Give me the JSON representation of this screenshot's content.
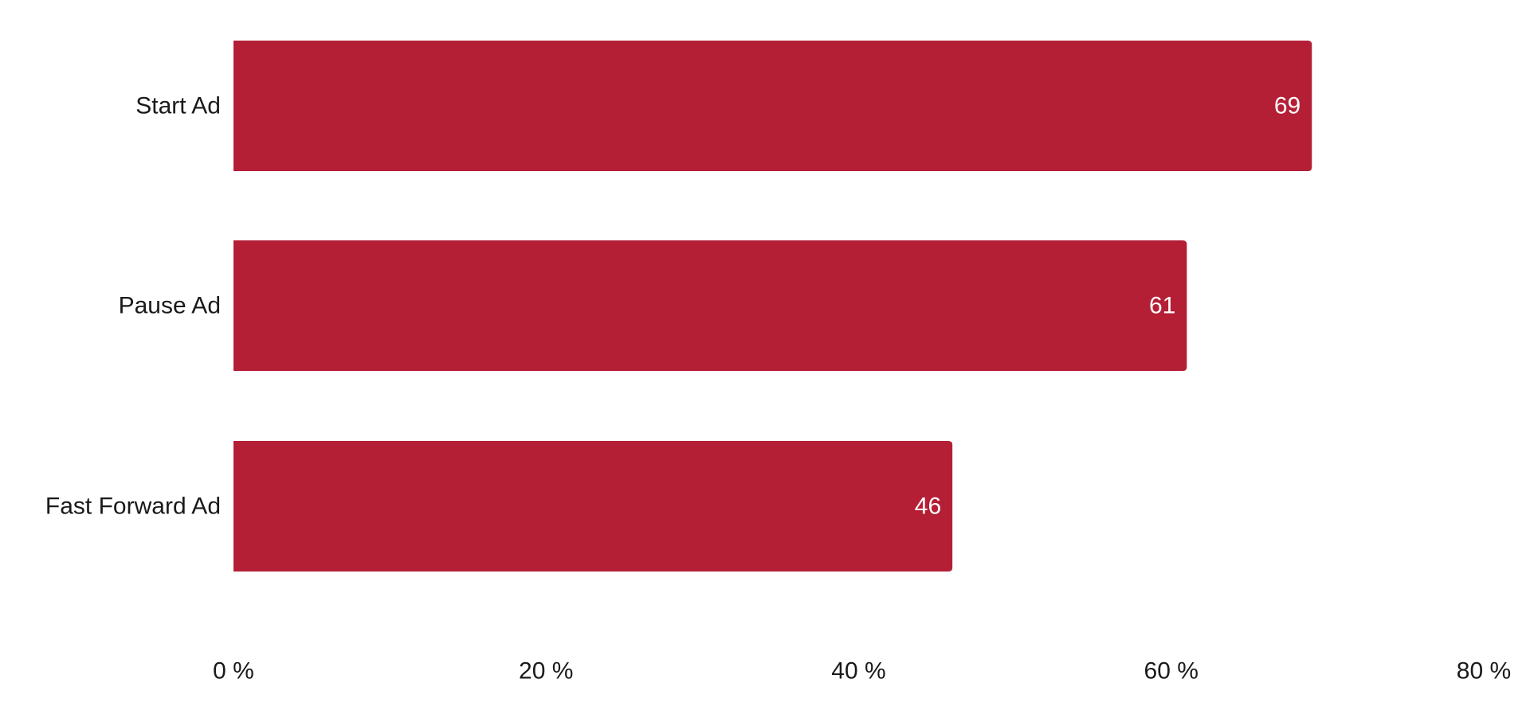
{
  "chart_data": {
    "type": "bar",
    "orientation": "horizontal",
    "categories": [
      "Start Ad",
      "Pause Ad",
      "Fast Forward Ad"
    ],
    "values": [
      69,
      61,
      46
    ],
    "data_labels": [
      "69",
      "61",
      "46"
    ],
    "title": "",
    "xlabel": "",
    "ylabel": "",
    "xlim": [
      0,
      80
    ],
    "x_ticks": [
      0,
      20,
      40,
      60,
      80
    ],
    "x_tick_labels": [
      "0 %",
      "20 %",
      "40 %",
      "60 %",
      "80 %"
    ],
    "grid": false,
    "legend": "none",
    "bar_color": "#B41F36",
    "label_color": "#FFFFFF",
    "text_color": "#1A1A1A"
  }
}
